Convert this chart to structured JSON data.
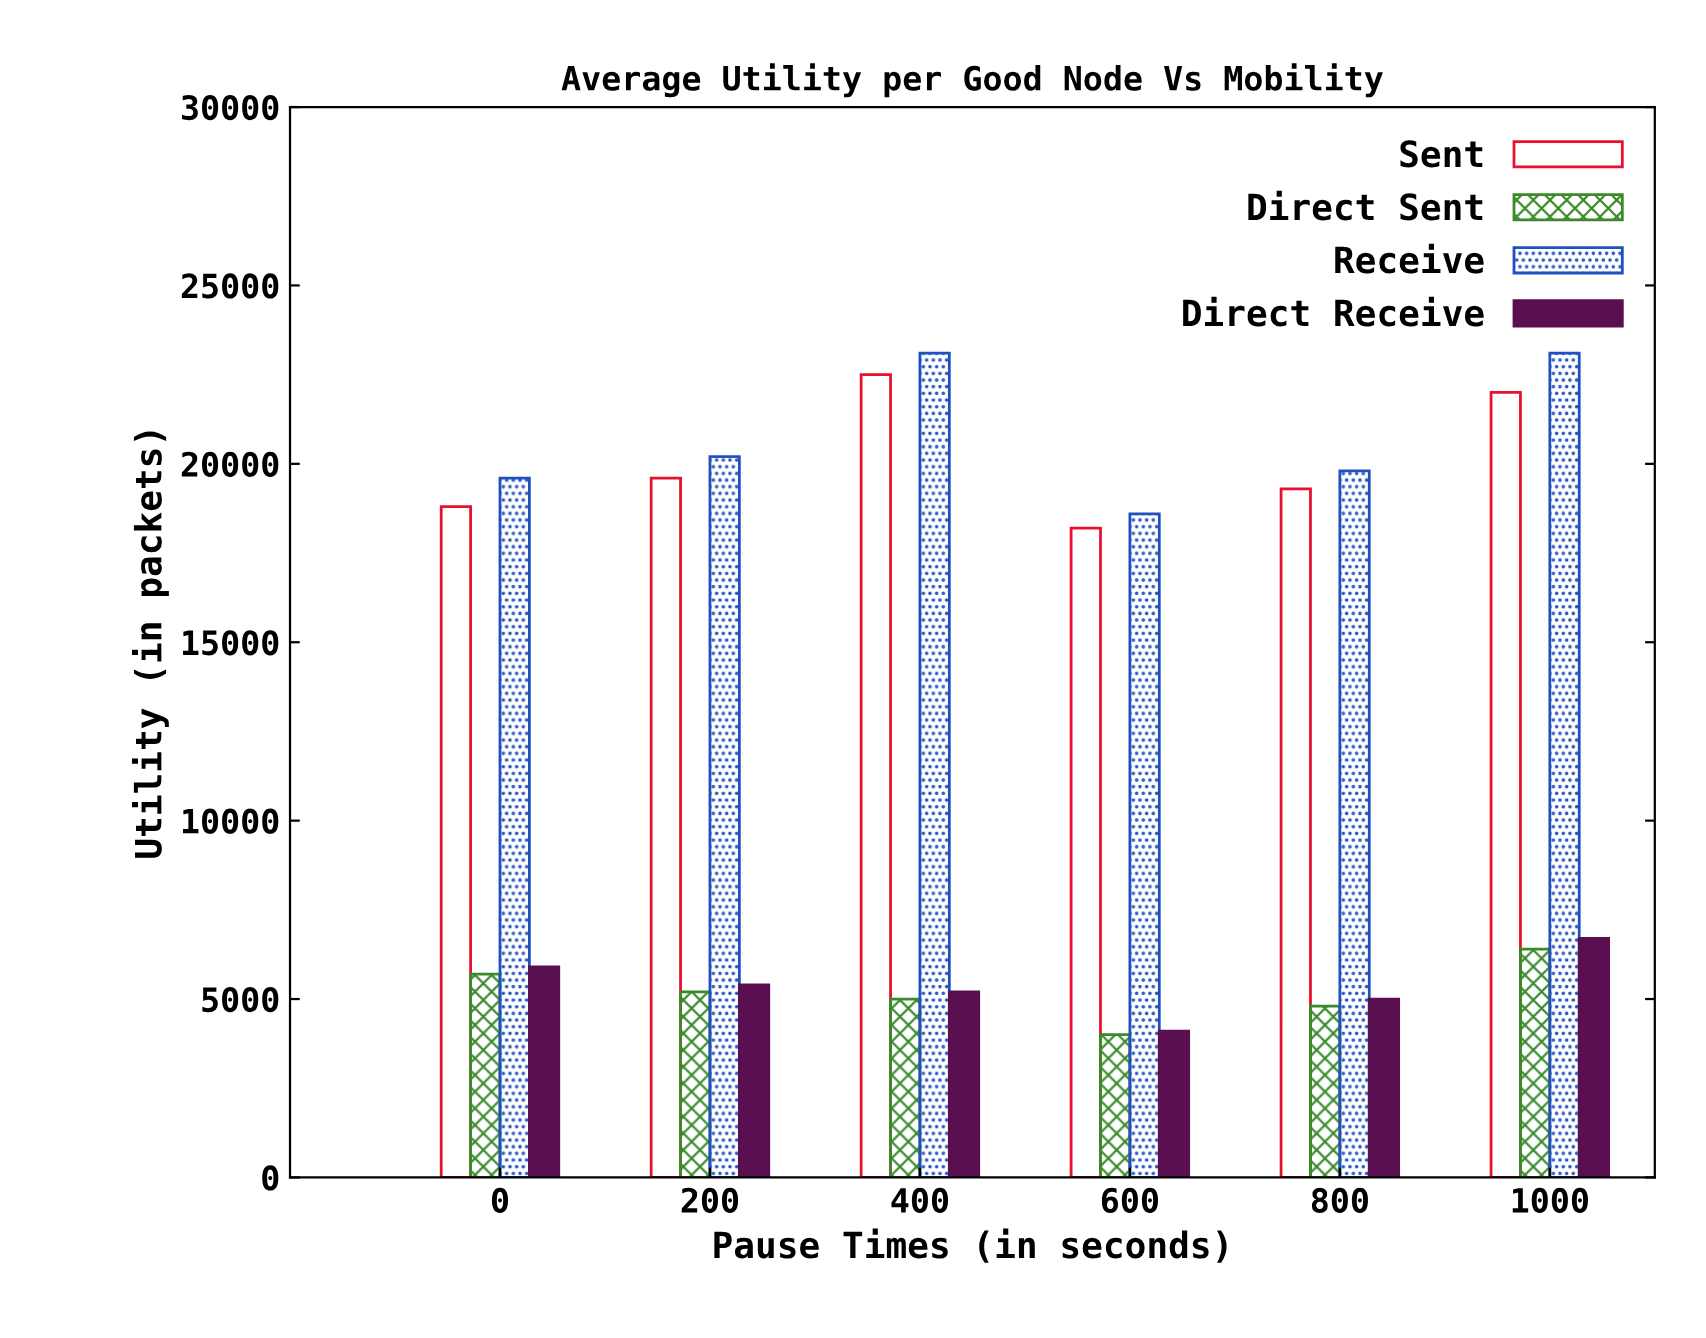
{
  "chart_data": {
    "type": "bar",
    "title": "Average Utility per Good Node Vs Mobility",
    "xlabel": "Pause Times (in seconds)",
    "ylabel": "Utility (in packets)",
    "categories": [
      "0",
      "200",
      "400",
      "600",
      "800",
      "1000"
    ],
    "series": [
      {
        "name": "Sent",
        "color": "#e8102c",
        "values": [
          18800,
          19600,
          22500,
          18200,
          19300,
          22000
        ]
      },
      {
        "name": "Direct Sent",
        "color": "#3a8a2a",
        "values": [
          5700,
          5200,
          5000,
          4000,
          4800,
          6400
        ]
      },
      {
        "name": "Receive",
        "color": "#2050c0",
        "values": [
          19600,
          20200,
          23100,
          18600,
          19800,
          23100
        ]
      },
      {
        "name": "Direct Receive",
        "color": "#5a1050",
        "values": [
          5900,
          5400,
          5200,
          4100,
          5000,
          6700
        ]
      }
    ],
    "ylim": [
      0,
      30000
    ],
    "yticks": [
      0,
      5000,
      10000,
      15000,
      20000,
      25000,
      30000
    ],
    "grid": false,
    "legend": "top right"
  }
}
